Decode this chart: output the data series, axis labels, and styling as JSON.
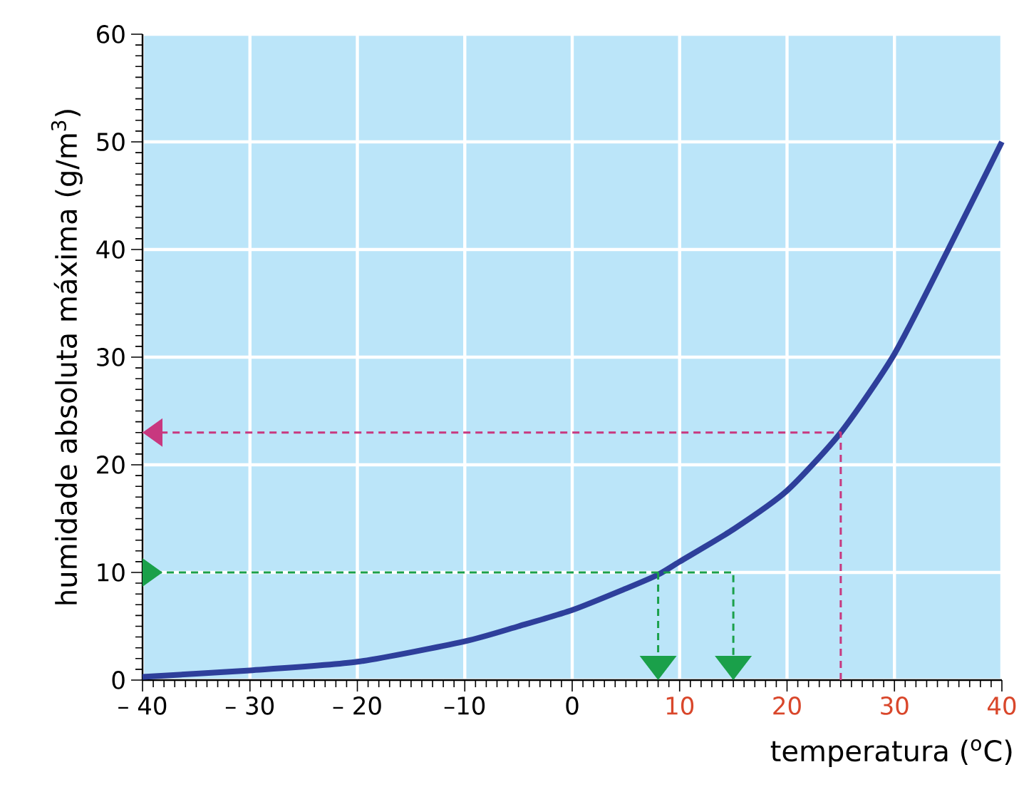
{
  "chart_data": {
    "type": "line",
    "xlabel": "temperatura ($^{o}$C)",
    "ylabel": "humidade absoluta máxima (g/m$^{3}$)",
    "xlim": [
      -40,
      40
    ],
    "ylim": [
      0,
      60
    ],
    "xticks": [
      {
        "value": -40,
        "label": "– 40"
      },
      {
        "value": -30,
        "label": "– 30"
      },
      {
        "value": -20,
        "label": "– 20"
      },
      {
        "value": -10,
        "label": "–10"
      },
      0,
      10,
      20,
      30,
      40
    ],
    "yticks": [
      0,
      10,
      20,
      30,
      40,
      50,
      60
    ],
    "grid": true,
    "series": [
      {
        "color": "#2e3f9b",
        "x": [
          -40,
          -30,
          -20,
          -10,
          -5,
          0,
          5,
          8,
          10,
          15,
          20,
          25,
          30,
          35,
          40
        ],
        "values": [
          0.3,
          0.9,
          1.7,
          3.6,
          5,
          6.5,
          8.5,
          9.8,
          11,
          14,
          17.6,
          23,
          30.3,
          40,
          50
        ]
      },
      {
        "color": "#c8387f",
        "line_style": "dashed",
        "x": [
          25,
          25,
          -40
        ],
        "values": [
          0,
          23,
          23
        ]
      },
      {
        "color": "#1aa04a",
        "line_style": "dashed",
        "x": [
          -40,
          15,
          15
        ],
        "values": [
          10,
          10,
          0
        ]
      },
      {
        "color": "#1aa04a",
        "line_style": "dashed",
        "x": [
          8,
          8
        ],
        "values": [
          10,
          0
        ]
      }
    ]
  }
}
